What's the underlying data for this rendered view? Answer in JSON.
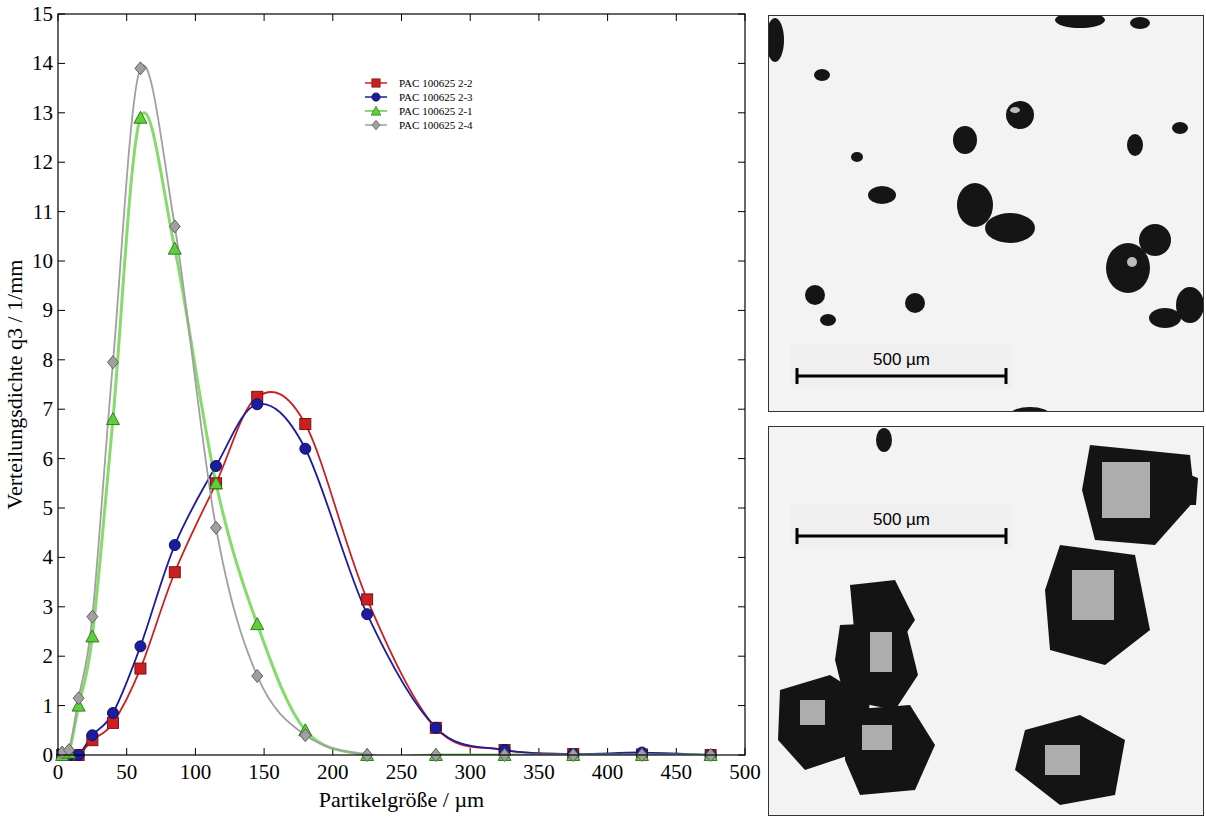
{
  "chart_data": {
    "type": "line",
    "x_label": "Partikelgröße / µm",
    "y_label": "Verteilungsdichte q3 / 1/mm",
    "x": [
      3,
      8,
      15,
      25,
      40,
      60,
      85,
      115,
      145,
      180,
      225,
      275,
      325,
      375,
      425,
      475
    ],
    "series": [
      {
        "name": "PAC 100625 2-2",
        "color": "#cc2020",
        "marker": "square",
        "line_style": "smooth",
        "values": [
          0,
          0,
          0,
          0.3,
          0.65,
          1.75,
          3.7,
          5.5,
          7.25,
          6.7,
          3.15,
          0.55,
          0.1,
          0.02,
          0.01,
          0
        ]
      },
      {
        "name": "PAC 100625 2-3",
        "color": "#1c1ca0",
        "marker": "circle",
        "line_style": "smooth",
        "values": [
          0,
          0,
          0,
          0.4,
          0.85,
          2.2,
          4.25,
          5.85,
          7.1,
          6.2,
          2.85,
          0.55,
          0.1,
          0.02,
          0.05,
          0
        ]
      },
      {
        "name": "PAC 100625 2-1",
        "color": "#5ccf3a",
        "marker": "triangle",
        "line_style": "smooth",
        "values": [
          0,
          0.05,
          1.0,
          2.4,
          6.8,
          12.9,
          10.25,
          5.5,
          2.65,
          0.5,
          0,
          0,
          0,
          0,
          0,
          0
        ]
      },
      {
        "name": "PAC 100625 2-4",
        "color": "#a0a0a0",
        "marker": "diamond",
        "line_style": "smooth",
        "values": [
          0.05,
          0.1,
          1.15,
          2.8,
          7.95,
          13.9,
          10.7,
          4.6,
          1.6,
          0.4,
          0,
          0,
          0,
          0,
          0,
          0
        ]
      }
    ],
    "xlim": [
      0,
      500
    ],
    "xticks": [
      0,
      50,
      100,
      150,
      200,
      250,
      300,
      350,
      400,
      450,
      500
    ],
    "ylim": [
      0,
      15
    ],
    "yticks": [
      0,
      1,
      2,
      3,
      4,
      5,
      6,
      7,
      8,
      9,
      10,
      11,
      12,
      13,
      14,
      15
    ],
    "grid": false,
    "legend": "top"
  },
  "micrographs": [
    {
      "scale_bar": "500 µm"
    },
    {
      "scale_bar": "500 µm"
    }
  ]
}
